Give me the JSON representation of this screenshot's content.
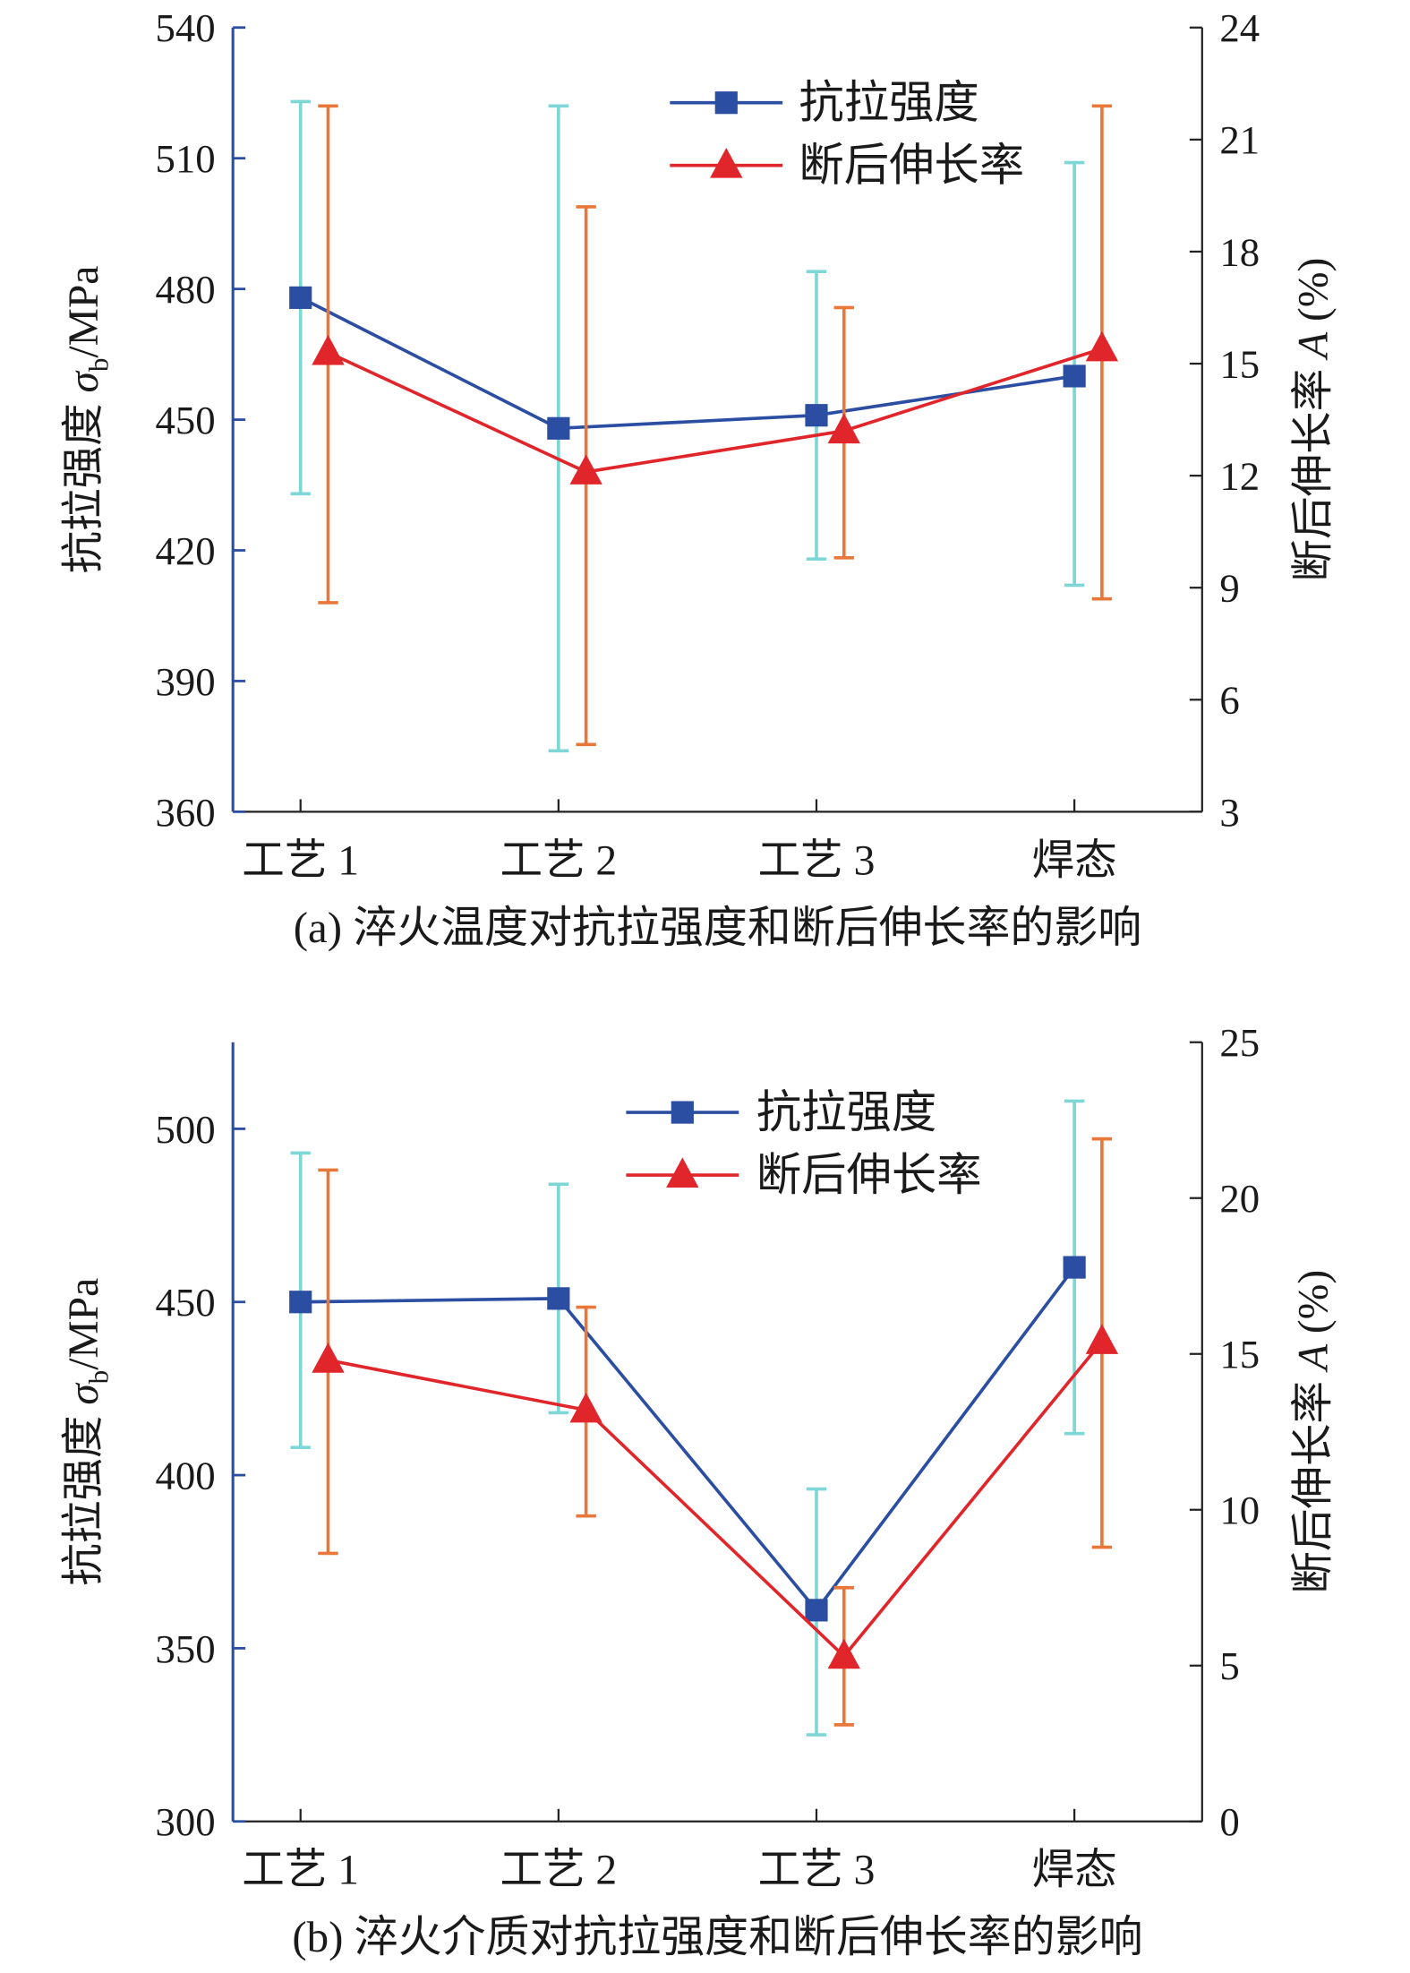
{
  "chart_data": [
    {
      "id": "a",
      "type": "line",
      "caption": "(a) 淬火温度对抗拉强度和断后伸长率的影响",
      "categories": [
        "工艺 1",
        "工艺 2",
        "工艺 3",
        "焊态"
      ],
      "ylabel_left": "抗拉强度 σb/MPa",
      "ylabel_left_parts": [
        "抗拉强度 ",
        "σ",
        "b",
        "/MPa"
      ],
      "ylabel_right": "断后伸长率 A (%)",
      "ylabel_right_parts": [
        "断后伸长率 ",
        "A",
        " (%)"
      ],
      "ylim_left": [
        360,
        540
      ],
      "yticks_left": [
        360,
        390,
        420,
        450,
        480,
        510,
        540
      ],
      "ylim_right": [
        3,
        24
      ],
      "yticks_right": [
        3,
        6,
        9,
        12,
        15,
        18,
        21,
        24
      ],
      "grid": false,
      "legend_position": "top-right",
      "series": [
        {
          "name": "抗拉强度",
          "axis": "left",
          "marker": "square",
          "color": "#2b4ea2",
          "error_color": "#7fd6d6",
          "values": [
            478,
            448,
            451,
            460
          ],
          "error_low": [
            433,
            374,
            418,
            412
          ],
          "error_high": [
            523,
            522,
            484,
            509
          ]
        },
        {
          "name": "断后伸长率",
          "axis": "right",
          "marker": "triangle",
          "color": "#e0262b",
          "error_color": "#e8783a",
          "values": [
            15.3,
            12.1,
            13.2,
            15.4
          ],
          "error_low": [
            8.6,
            4.8,
            9.8,
            8.7
          ],
          "error_high": [
            21.9,
            19.2,
            16.5,
            21.9
          ]
        }
      ]
    },
    {
      "id": "b",
      "type": "line",
      "caption": "(b) 淬火介质对抗拉强度和断后伸长率的影响",
      "categories": [
        "工艺 1",
        "工艺 2",
        "工艺 3",
        "焊态"
      ],
      "ylabel_left": "抗拉强度 σb/MPa",
      "ylabel_left_parts": [
        "抗拉强度 ",
        "σ",
        "b",
        "/MPa"
      ],
      "ylabel_right": "断后伸长率 A (%)",
      "ylabel_right_parts": [
        "断后伸长率 ",
        "A",
        " (%)"
      ],
      "ylim_left": [
        300,
        525
      ],
      "yticks_left": [
        300,
        350,
        400,
        450,
        500
      ],
      "ylim_right": [
        0,
        25
      ],
      "yticks_right": [
        0,
        5,
        10,
        15,
        20,
        25
      ],
      "grid": false,
      "legend_position": "top-right",
      "series": [
        {
          "name": "抗拉强度",
          "axis": "left",
          "marker": "square",
          "color": "#2b4ea2",
          "error_color": "#7fd6d6",
          "values": [
            450,
            451,
            361,
            460
          ],
          "error_low": [
            408,
            418,
            325,
            412
          ],
          "error_high": [
            493,
            484,
            396,
            508
          ]
        },
        {
          "name": "断后伸长率",
          "axis": "right",
          "marker": "triangle",
          "color": "#e0262b",
          "error_color": "#e8783a",
          "values": [
            14.8,
            13.2,
            5.3,
            15.4
          ],
          "error_low": [
            8.6,
            9.8,
            3.1,
            8.8
          ],
          "error_high": [
            20.9,
            16.5,
            7.5,
            21.9
          ]
        }
      ]
    }
  ]
}
